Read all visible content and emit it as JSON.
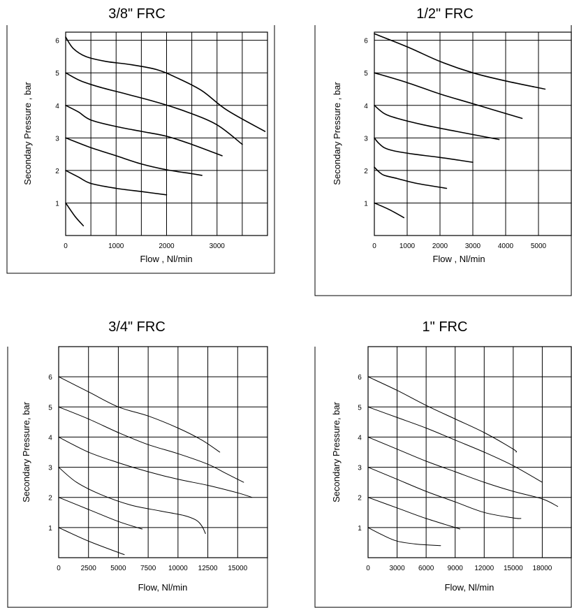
{
  "chart_data": [
    {
      "type": "line",
      "title": "3/8\" FRC",
      "xlabel": "Flow , Nl/min",
      "ylabel": "Secondary Pressure , bar",
      "xlim": [
        0,
        4000
      ],
      "ylim": [
        0,
        6.25
      ],
      "x_grid": [
        0,
        500,
        1000,
        1500,
        2000,
        2500,
        3000,
        3500,
        4000
      ],
      "xticks": [
        "0",
        "1000",
        "2000",
        "3000"
      ],
      "xtick_values": [
        0,
        1000,
        2000,
        3000
      ],
      "yticks": [
        "1",
        "2",
        "3",
        "4",
        "5",
        "6"
      ],
      "ytick_values": [
        1,
        2,
        3,
        4,
        5,
        6
      ],
      "grid": true,
      "series": [
        {
          "points": [
            [
              0,
              1.0
            ],
            [
              180,
              0.6
            ],
            [
              350,
              0.3
            ]
          ]
        },
        {
          "points": [
            [
              0,
              2.0
            ],
            [
              250,
              1.8
            ],
            [
              500,
              1.6
            ],
            [
              1000,
              1.45
            ],
            [
              1500,
              1.35
            ],
            [
              2000,
              1.25
            ]
          ]
        },
        {
          "points": [
            [
              0,
              3.0
            ],
            [
              500,
              2.7
            ],
            [
              1000,
              2.45
            ],
            [
              1500,
              2.2
            ],
            [
              2000,
              2.02
            ],
            [
              2500,
              1.9
            ],
            [
              2700,
              1.85
            ]
          ]
        },
        {
          "points": [
            [
              0,
              4.0
            ],
            [
              250,
              3.8
            ],
            [
              500,
              3.55
            ],
            [
              1000,
              3.35
            ],
            [
              1500,
              3.2
            ],
            [
              2000,
              3.05
            ],
            [
              2500,
              2.8
            ],
            [
              3100,
              2.45
            ]
          ]
        },
        {
          "points": [
            [
              0,
              5.0
            ],
            [
              300,
              4.75
            ],
            [
              700,
              4.55
            ],
            [
              1200,
              4.35
            ],
            [
              1800,
              4.1
            ],
            [
              2400,
              3.8
            ],
            [
              3000,
              3.4
            ],
            [
              3500,
              2.8
            ]
          ]
        },
        {
          "points": [
            [
              0,
              6.1
            ],
            [
              150,
              5.75
            ],
            [
              400,
              5.5
            ],
            [
              800,
              5.35
            ],
            [
              1300,
              5.25
            ],
            [
              1800,
              5.1
            ],
            [
              2200,
              4.85
            ],
            [
              2700,
              4.45
            ],
            [
              3200,
              3.85
            ],
            [
              3950,
              3.2
            ]
          ]
        }
      ]
    },
    {
      "type": "line",
      "title": "1/2\" FRC",
      "xlabel": "Flow , Nl/min",
      "ylabel": "Secondary Pressure , bar",
      "xlim": [
        0,
        6000
      ],
      "ylim": [
        0,
        6.25
      ],
      "x_grid": [
        0,
        1000,
        2000,
        3000,
        4000,
        5000,
        6000
      ],
      "xticks": [
        "0",
        "1000",
        "2000",
        "3000",
        "4000",
        "5000"
      ],
      "xtick_values": [
        0,
        1000,
        2000,
        3000,
        4000,
        5000
      ],
      "yticks": [
        "1",
        "2",
        "3",
        "4",
        "5",
        "6"
      ],
      "ytick_values": [
        1,
        2,
        3,
        4,
        5,
        6
      ],
      "grid": true,
      "series": [
        {
          "points": [
            [
              0,
              1.0
            ],
            [
              450,
              0.8
            ],
            [
              900,
              0.55
            ]
          ]
        },
        {
          "points": [
            [
              0,
              2.1
            ],
            [
              150,
              1.95
            ],
            [
              300,
              1.85
            ],
            [
              700,
              1.75
            ],
            [
              1300,
              1.6
            ],
            [
              2200,
              1.45
            ]
          ]
        },
        {
          "points": [
            [
              0,
              3.0
            ],
            [
              120,
              2.85
            ],
            [
              300,
              2.7
            ],
            [
              600,
              2.6
            ],
            [
              1200,
              2.5
            ],
            [
              2000,
              2.4
            ],
            [
              3000,
              2.25
            ]
          ]
        },
        {
          "points": [
            [
              0,
              4.0
            ],
            [
              300,
              3.75
            ],
            [
              700,
              3.6
            ],
            [
              1500,
              3.4
            ],
            [
              2500,
              3.2
            ],
            [
              3800,
              2.95
            ]
          ]
        },
        {
          "points": [
            [
              0,
              5.0
            ],
            [
              1000,
              4.7
            ],
            [
              2000,
              4.35
            ],
            [
              3000,
              4.05
            ],
            [
              4500,
              3.6
            ]
          ]
        },
        {
          "points": [
            [
              0,
              6.2
            ],
            [
              1000,
              5.8
            ],
            [
              2000,
              5.35
            ],
            [
              3000,
              5.0
            ],
            [
              4000,
              4.75
            ],
            [
              5200,
              4.5
            ]
          ]
        }
      ]
    },
    {
      "type": "line",
      "title": "3/4\" FRC",
      "xlabel": "Flow, Nl/min",
      "ylabel": "Secondary Pressure, bar",
      "xlim": [
        0,
        17500
      ],
      "ylim": [
        0,
        7
      ],
      "x_grid": [
        0,
        2500,
        5000,
        7500,
        10000,
        12500,
        15000,
        17500
      ],
      "xticks": [
        "0",
        "2500",
        "5000",
        "7500",
        "10000",
        "12500",
        "15000"
      ],
      "xtick_values": [
        0,
        2500,
        5000,
        7500,
        10000,
        12500,
        15000
      ],
      "yticks": [
        "1",
        "2",
        "3",
        "4",
        "5",
        "6"
      ],
      "ytick_values": [
        1,
        2,
        3,
        4,
        5,
        6
      ],
      "grid": true,
      "series": [
        {
          "points": [
            [
              0,
              1.0
            ],
            [
              2500,
              0.55
            ],
            [
              5500,
              0.1
            ]
          ]
        },
        {
          "points": [
            [
              0,
              2.0
            ],
            [
              2500,
              1.6
            ],
            [
              5000,
              1.2
            ],
            [
              7000,
              0.95
            ]
          ]
        },
        {
          "points": [
            [
              0,
              3.0
            ],
            [
              1500,
              2.5
            ],
            [
              3500,
              2.1
            ],
            [
              6000,
              1.75
            ],
            [
              8500,
              1.55
            ],
            [
              10500,
              1.4
            ],
            [
              11500,
              1.25
            ],
            [
              12000,
              1.05
            ],
            [
              12300,
              0.8
            ]
          ]
        },
        {
          "points": [
            [
              0,
              4.0
            ],
            [
              2500,
              3.5
            ],
            [
              5000,
              3.15
            ],
            [
              7500,
              2.85
            ],
            [
              10000,
              2.6
            ],
            [
              12500,
              2.4
            ],
            [
              15000,
              2.15
            ],
            [
              16200,
              2.0
            ]
          ]
        },
        {
          "points": [
            [
              0,
              5.0
            ],
            [
              2500,
              4.6
            ],
            [
              5000,
              4.15
            ],
            [
              7500,
              3.75
            ],
            [
              10000,
              3.45
            ],
            [
              12500,
              3.1
            ],
            [
              14000,
              2.8
            ],
            [
              15500,
              2.5
            ]
          ]
        },
        {
          "points": [
            [
              0,
              6.0
            ],
            [
              2500,
              5.5
            ],
            [
              5000,
              5.0
            ],
            [
              7500,
              4.7
            ],
            [
              10000,
              4.3
            ],
            [
              12000,
              3.9
            ],
            [
              13500,
              3.5
            ]
          ]
        }
      ]
    },
    {
      "type": "line",
      "title": "1\" FRC",
      "xlabel": "Flow, Nl/min",
      "ylabel": "Secondary Pressure, bar",
      "xlim": [
        0,
        21000
      ],
      "ylim": [
        0,
        7
      ],
      "x_grid": [
        0,
        3000,
        6000,
        9000,
        12000,
        15000,
        18000,
        21000
      ],
      "xticks": [
        "0",
        "3000",
        "6000",
        "9000",
        "12000",
        "15000",
        "18000"
      ],
      "xtick_values": [
        0,
        3000,
        6000,
        9000,
        12000,
        15000,
        18000
      ],
      "yticks": [
        "1",
        "2",
        "3",
        "4",
        "5",
        "6"
      ],
      "ytick_values": [
        1,
        2,
        3,
        4,
        5,
        6
      ],
      "grid": true,
      "series": [
        {
          "points": [
            [
              0,
              1.0
            ],
            [
              1500,
              0.75
            ],
            [
              3000,
              0.55
            ],
            [
              5000,
              0.45
            ],
            [
              7500,
              0.4
            ]
          ]
        },
        {
          "points": [
            [
              0,
              2.0
            ],
            [
              3000,
              1.65
            ],
            [
              6000,
              1.3
            ],
            [
              9500,
              0.95
            ]
          ]
        },
        {
          "points": [
            [
              0,
              3.0
            ],
            [
              3000,
              2.6
            ],
            [
              6000,
              2.2
            ],
            [
              9000,
              1.85
            ],
            [
              12000,
              1.5
            ],
            [
              15000,
              1.32
            ],
            [
              15800,
              1.3
            ]
          ]
        },
        {
          "points": [
            [
              0,
              4.0
            ],
            [
              3000,
              3.6
            ],
            [
              6000,
              3.2
            ],
            [
              9000,
              2.85
            ],
            [
              12000,
              2.5
            ],
            [
              15000,
              2.2
            ],
            [
              18000,
              1.95
            ],
            [
              19600,
              1.7
            ]
          ]
        },
        {
          "points": [
            [
              0,
              5.0
            ],
            [
              3000,
              4.65
            ],
            [
              6000,
              4.3
            ],
            [
              9000,
              3.9
            ],
            [
              12000,
              3.5
            ],
            [
              15000,
              3.05
            ],
            [
              18000,
              2.5
            ]
          ]
        },
        {
          "points": [
            [
              0,
              6.0
            ],
            [
              3000,
              5.55
            ],
            [
              6000,
              5.05
            ],
            [
              9000,
              4.6
            ],
            [
              12000,
              4.15
            ],
            [
              15000,
              3.6
            ],
            [
              15300,
              3.5
            ]
          ]
        }
      ]
    }
  ]
}
